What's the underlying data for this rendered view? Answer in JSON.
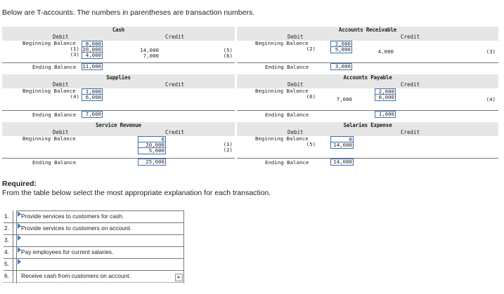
{
  "intro": "Below are T-accounts. The numbers in parentheses are transaction numbers.",
  "labels": {
    "debit": "Debit",
    "credit": "Credit",
    "beginning_balance": "Beginning Balance",
    "ending_balance": "Ending Balance"
  },
  "accounts": {
    "cash": {
      "title": "Cash",
      "debits": [
        {
          "ref": "",
          "amount": "8,000"
        },
        {
          "ref": "(1)",
          "amount": "20,000"
        },
        {
          "ref": "(3)",
          "amount": "4,000"
        }
      ],
      "credits": [
        {
          "ref": "(5)",
          "amount": "14,000"
        },
        {
          "ref": "(6)",
          "amount": "7,000"
        }
      ],
      "ending": "11,000"
    },
    "accounts_receivable": {
      "title": "Accounts Receivable",
      "debits": [
        {
          "ref": "",
          "amount": "2,000"
        },
        {
          "ref": "(2)",
          "amount": "5,000"
        }
      ],
      "credits": [
        {
          "ref": "(3)",
          "amount": "4,000"
        }
      ],
      "ending": "3,000"
    },
    "supplies": {
      "title": "Supplies",
      "debits": [
        {
          "ref": "",
          "amount": "1,000"
        },
        {
          "ref": "(4)",
          "amount": "6,000"
        }
      ],
      "credits": [],
      "ending": "7,000"
    },
    "accounts_payable": {
      "title": "Accounts Payable",
      "debits": [
        {
          "ref": "(6)",
          "amount": "7,000"
        }
      ],
      "credits": [
        {
          "ref": "",
          "amount": "2,000"
        },
        {
          "ref": "(4)",
          "amount": "6,000"
        }
      ],
      "ending": "1,000"
    },
    "service_revenue": {
      "title": "Service Revenue",
      "debits": [],
      "credits": [
        {
          "ref": "",
          "amount": "0"
        },
        {
          "ref": "(1)",
          "amount": "20,000"
        },
        {
          "ref": "(2)",
          "amount": "5,000"
        }
      ],
      "ending": "25,000"
    },
    "salaries_expense": {
      "title": "Salaries Expense",
      "debits": [
        {
          "ref": "",
          "amount": "0"
        },
        {
          "ref": "(5)",
          "amount": "14,000"
        }
      ],
      "credits": [],
      "ending": "14,000"
    }
  },
  "required": {
    "heading": "Required:",
    "instruction": "From the table below select the most appropriate explanation for each transaction."
  },
  "answers": [
    {
      "num": "1.",
      "text": "Provide services to customers for cash."
    },
    {
      "num": "2.",
      "text": "Provide services to customers on account."
    },
    {
      "num": "3.",
      "text": ""
    },
    {
      "num": "4.",
      "text": "Pay employees for current salaries."
    },
    {
      "num": "5.",
      "text": ""
    },
    {
      "num": "6.",
      "text": "Receive cash from customers on account."
    }
  ],
  "colors": {
    "header_bg": "#e6e6e6",
    "input_border": "#3a6fb0",
    "marker": "#3a78c9"
  }
}
